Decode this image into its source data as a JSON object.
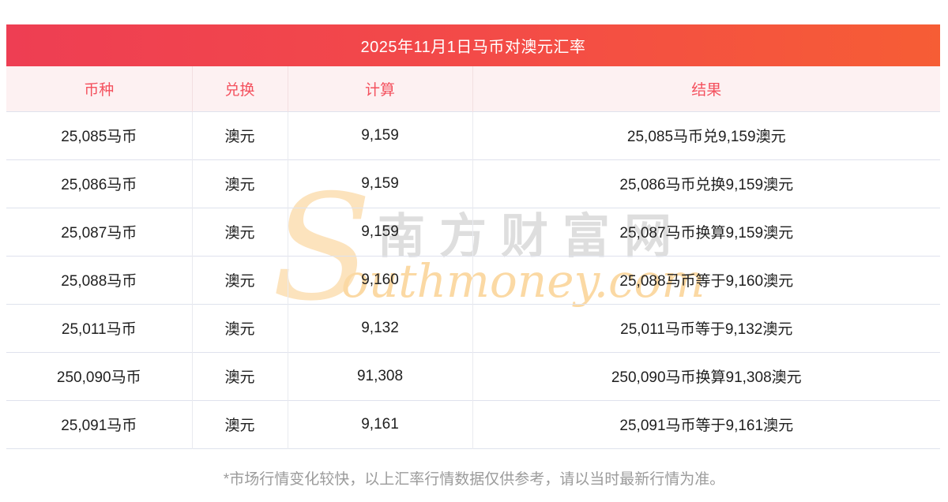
{
  "title": "2025年11月1日马币对澳元汇率",
  "watermark": {
    "s": "S",
    "cn": "南方财富网",
    "en": "outhmoney.com"
  },
  "footer": {
    "note": "*市场行情变化较快，以上汇率行情数据仅供参考，请以当时最新行情为准。"
  },
  "colors": {
    "banner_gradient_left": "#ee3e53",
    "banner_gradient_mid": "#f34a48",
    "banner_gradient_right": "#f65d35",
    "header_row_bg": "#fdf1f2",
    "header_text_red": "#f4515e",
    "row_divider": "#dfe2ed",
    "column_divider": "#e9eaef",
    "body_text": "#1f1f1f",
    "footer_gray": "#9b9b9b",
    "watermark_cream": "#fce3bd",
    "watermark_orange": "#fbd9a4",
    "watermark_gray": "#d9d9d9"
  },
  "chart_data": {
    "type": "table",
    "title": "2025年11月1日马币对澳元汇率",
    "columns": [
      "币种",
      "兑换",
      "计算",
      "结果"
    ],
    "column_keys": [
      "currency",
      "exchange",
      "calculation",
      "result"
    ],
    "rows": [
      [
        "25,085马币",
        "澳元",
        "9,159",
        "25,085马币兑9,159澳元"
      ],
      [
        "25,086马币",
        "澳元",
        "9,159",
        "25,086马币兑换9,159澳元"
      ],
      [
        "25,087马币",
        "澳元",
        "9,159",
        "25,087马币换算9,159澳元"
      ],
      [
        "25,088马币",
        "澳元",
        "9,160",
        "25,088马币等于9,160澳元"
      ],
      [
        "25,011马币",
        "澳元",
        "9,132",
        "25,011马币等于9,132澳元"
      ],
      [
        "250,090马币",
        "澳元",
        "91,308",
        "250,090马币换算91,308澳元"
      ],
      [
        "25,091马币",
        "澳元",
        "9,161",
        "25,091马币等于9,161澳元"
      ]
    ]
  }
}
